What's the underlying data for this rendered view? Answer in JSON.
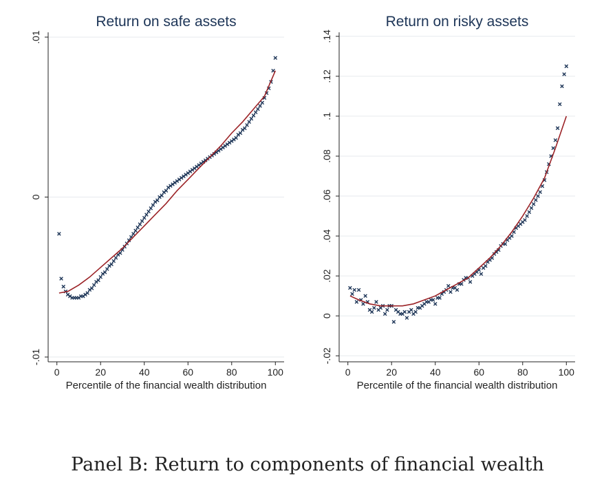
{
  "caption": "Panel B: Return to components of financial wealth",
  "chart_data": [
    {
      "type": "scatter",
      "title": "Return on safe assets",
      "xlabel": "Percentile of the financial wealth distribution",
      "ylabel": "",
      "xlim": [
        -4,
        104
      ],
      "ylim": [
        -0.0103,
        0.0103
      ],
      "xticks": [
        0,
        20,
        40,
        60,
        80,
        100
      ],
      "xtick_labels": [
        "0",
        "20",
        "40",
        "60",
        "80",
        "100"
      ],
      "yticks": [
        -0.01,
        0,
        0.01
      ],
      "ytick_labels": [
        "-.01",
        "0",
        ".01"
      ],
      "grid": "horizontal at y ticks",
      "marker": "x",
      "marker_color": "#1d3557",
      "fit_color": "#9b2226",
      "series": [
        {
          "name": "percentile means",
          "x": [
            1,
            2,
            3,
            4,
            5,
            6,
            7,
            8,
            9,
            10,
            11,
            12,
            13,
            14,
            15,
            16,
            17,
            18,
            19,
            20,
            21,
            22,
            23,
            24,
            25,
            26,
            27,
            28,
            29,
            30,
            31,
            32,
            33,
            34,
            35,
            36,
            37,
            38,
            39,
            40,
            41,
            42,
            43,
            44,
            45,
            46,
            47,
            48,
            49,
            50,
            51,
            52,
            53,
            54,
            55,
            56,
            57,
            58,
            59,
            60,
            61,
            62,
            63,
            64,
            65,
            66,
            67,
            68,
            69,
            70,
            71,
            72,
            73,
            74,
            75,
            76,
            77,
            78,
            79,
            80,
            81,
            82,
            83,
            84,
            85,
            86,
            87,
            88,
            89,
            90,
            91,
            92,
            93,
            94,
            95,
            96,
            97,
            98,
            99,
            100
          ],
          "y": [
            -0.0023,
            -0.0051,
            -0.0056,
            -0.0059,
            -0.0061,
            -0.0062,
            -0.0063,
            -0.0063,
            -0.0063,
            -0.0063,
            -0.0062,
            -0.0062,
            -0.0061,
            -0.006,
            -0.0058,
            -0.0057,
            -0.0055,
            -0.0053,
            -0.0052,
            -0.005,
            -0.0048,
            -0.0047,
            -0.0045,
            -0.0043,
            -0.0042,
            -0.004,
            -0.0038,
            -0.0036,
            -0.0035,
            -0.0033,
            -0.0031,
            -0.0029,
            -0.0027,
            -0.0025,
            -0.0023,
            -0.0021,
            -0.0019,
            -0.0017,
            -0.0015,
            -0.0013,
            -0.0011,
            -0.0009,
            -0.0007,
            -0.0005,
            -0.0003,
            -0.0002,
            0.0,
            0.0001,
            0.0003,
            0.0004,
            0.0006,
            0.0007,
            0.0008,
            0.0009,
            0.001,
            0.0011,
            0.0012,
            0.0013,
            0.0014,
            0.0015,
            0.0016,
            0.0017,
            0.0018,
            0.0019,
            0.002,
            0.0021,
            0.0022,
            0.0023,
            0.0024,
            0.0025,
            0.0026,
            0.0027,
            0.0028,
            0.0029,
            0.003,
            0.0031,
            0.0032,
            0.0033,
            0.0034,
            0.0035,
            0.0036,
            0.0037,
            0.0039,
            0.004,
            0.0042,
            0.0043,
            0.0045,
            0.0047,
            0.0049,
            0.0051,
            0.0053,
            0.0055,
            0.0057,
            0.0059,
            0.0062,
            0.0065,
            0.0068,
            0.0072,
            0.0079,
            0.0087
          ]
        },
        {
          "name": "quadratic fit",
          "type": "line",
          "x": [
            1,
            5,
            10,
            15,
            20,
            25,
            30,
            35,
            40,
            45,
            50,
            55,
            60,
            65,
            70,
            75,
            80,
            85,
            90,
            95,
            100
          ],
          "y": [
            -0.006,
            -0.0059,
            -0.0055,
            -0.005,
            -0.0044,
            -0.0038,
            -0.0032,
            -0.0025,
            -0.0018,
            -0.0011,
            -0.0004,
            0.0004,
            0.0011,
            0.0018,
            0.0025,
            0.0032,
            0.004,
            0.0047,
            0.0055,
            0.0063,
            0.0079
          ]
        }
      ]
    },
    {
      "type": "scatter",
      "title": "Return on risky assets",
      "xlabel": "Percentile of the financial wealth distribution",
      "ylabel": "",
      "xlim": [
        -4,
        104
      ],
      "ylim": [
        -0.023,
        0.142
      ],
      "xticks": [
        0,
        20,
        40,
        60,
        80,
        100
      ],
      "xtick_labels": [
        "0",
        "20",
        "40",
        "60",
        "80",
        "100"
      ],
      "yticks": [
        -0.02,
        0,
        0.02,
        0.04,
        0.06,
        0.08,
        0.1,
        0.12,
        0.14
      ],
      "ytick_labels": [
        "-.02",
        "0",
        ".02",
        ".04",
        ".06",
        ".08",
        ".1",
        ".12",
        ".14"
      ],
      "grid": "horizontal at y ticks",
      "marker": "x",
      "marker_color": "#1d3557",
      "fit_color": "#9b2226",
      "series": [
        {
          "name": "percentile means",
          "x": [
            1,
            2,
            3,
            4,
            5,
            6,
            7,
            8,
            9,
            10,
            11,
            12,
            13,
            14,
            15,
            16,
            17,
            18,
            19,
            20,
            21,
            22,
            23,
            24,
            25,
            26,
            27,
            28,
            29,
            30,
            31,
            32,
            33,
            34,
            35,
            36,
            37,
            38,
            39,
            40,
            41,
            42,
            43,
            44,
            45,
            46,
            47,
            48,
            49,
            50,
            51,
            52,
            53,
            54,
            55,
            56,
            57,
            58,
            59,
            60,
            61,
            62,
            63,
            64,
            65,
            66,
            67,
            68,
            69,
            70,
            71,
            72,
            73,
            74,
            75,
            76,
            77,
            78,
            79,
            80,
            81,
            82,
            83,
            84,
            85,
            86,
            87,
            88,
            89,
            90,
            91,
            92,
            93,
            94,
            95,
            96,
            97,
            98,
            99,
            100
          ],
          "y": [
            0.014,
            0.011,
            0.013,
            0.007,
            0.013,
            0.008,
            0.006,
            0.01,
            0.007,
            0.003,
            0.002,
            0.004,
            0.007,
            0.003,
            0.004,
            0.005,
            0.001,
            0.003,
            0.005,
            0.005,
            -0.003,
            0.003,
            0.002,
            0.001,
            0.001,
            0.002,
            -0.001,
            0.002,
            0.003,
            0.001,
            0.002,
            0.004,
            0.004,
            0.005,
            0.006,
            0.007,
            0.007,
            0.008,
            0.008,
            0.006,
            0.009,
            0.009,
            0.011,
            0.012,
            0.013,
            0.015,
            0.012,
            0.014,
            0.014,
            0.013,
            0.016,
            0.016,
            0.018,
            0.019,
            0.019,
            0.017,
            0.02,
            0.021,
            0.022,
            0.023,
            0.021,
            0.024,
            0.025,
            0.027,
            0.028,
            0.029,
            0.031,
            0.032,
            0.033,
            0.035,
            0.036,
            0.036,
            0.038,
            0.039,
            0.04,
            0.042,
            0.044,
            0.045,
            0.046,
            0.047,
            0.048,
            0.05,
            0.052,
            0.054,
            0.056,
            0.058,
            0.06,
            0.062,
            0.065,
            0.068,
            0.072,
            0.076,
            0.08,
            0.084,
            0.088,
            0.094,
            0.106,
            0.115,
            0.121,
            0.125
          ]
        },
        {
          "name": "quadratic fit",
          "type": "line",
          "x": [
            1,
            5,
            10,
            15,
            20,
            25,
            30,
            35,
            40,
            45,
            50,
            55,
            60,
            65,
            70,
            75,
            80,
            85,
            90,
            95,
            100
          ],
          "y": [
            0.01,
            0.008,
            0.006,
            0.005,
            0.005,
            0.005,
            0.006,
            0.008,
            0.01,
            0.013,
            0.016,
            0.019,
            0.024,
            0.029,
            0.035,
            0.042,
            0.05,
            0.059,
            0.069,
            0.084,
            0.1
          ]
        }
      ]
    }
  ]
}
